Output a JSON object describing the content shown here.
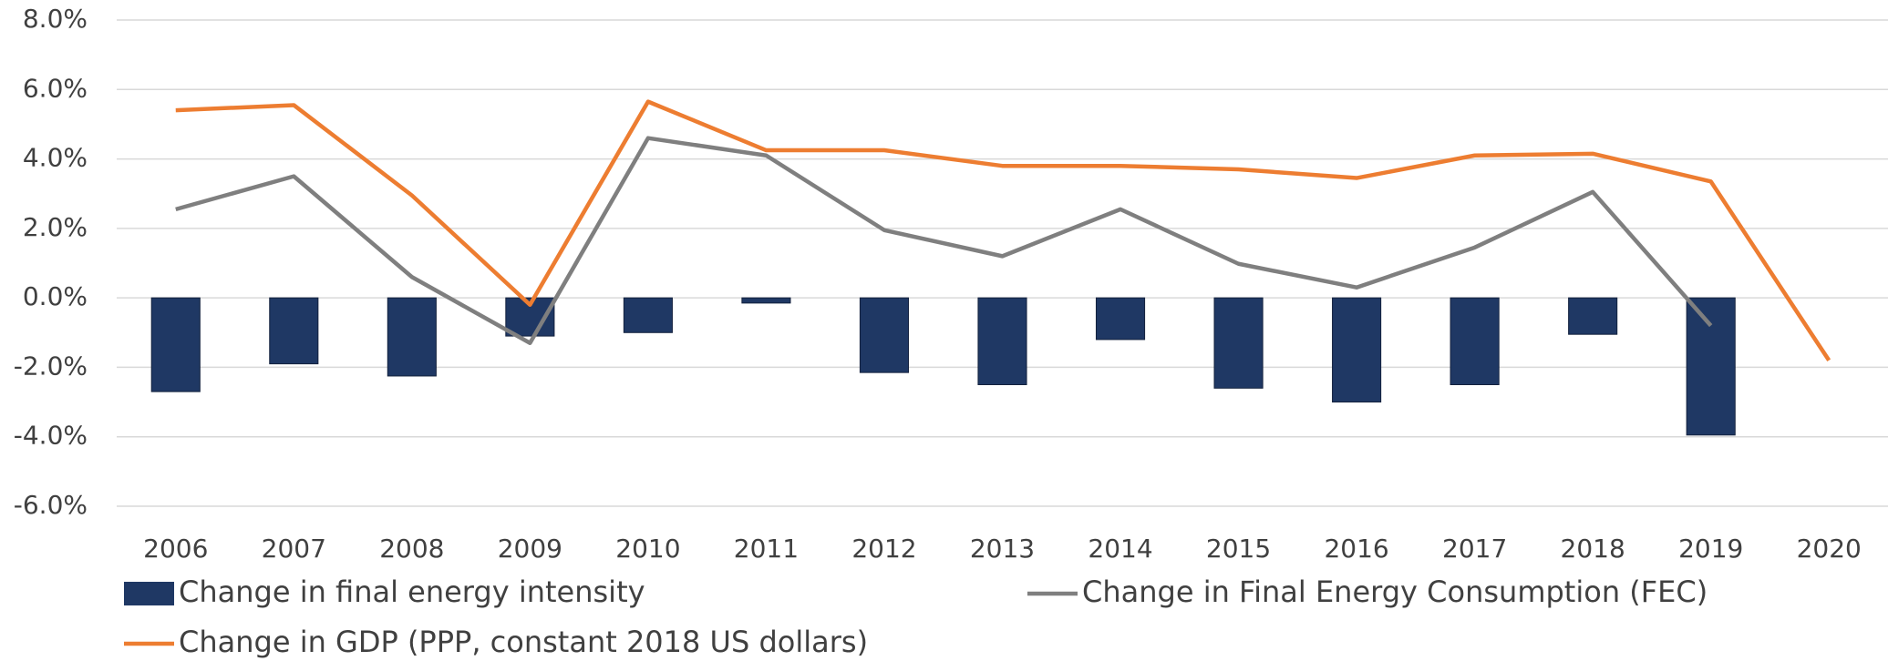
{
  "chart_data": {
    "type": "bar-line",
    "categories": [
      "2006",
      "2007",
      "2008",
      "2009",
      "2010",
      "2011",
      "2012",
      "2013",
      "2014",
      "2015",
      "2016",
      "2017",
      "2018",
      "2019",
      "2020"
    ],
    "series": [
      {
        "name": "Change in final energy intensity",
        "type": "bar",
        "color": "#1f3864",
        "values": [
          -2.7,
          -1.9,
          -2.25,
          -1.1,
          -1.0,
          -0.15,
          -2.15,
          -2.5,
          -1.2,
          -2.6,
          -3.0,
          -2.5,
          -1.05,
          -3.95,
          null
        ]
      },
      {
        "name": "Change in Final Energy Consumption (FEC)",
        "type": "line",
        "color": "#7f7f7f",
        "values": [
          2.55,
          3.5,
          0.6,
          -1.3,
          4.6,
          4.1,
          1.95,
          1.2,
          2.55,
          0.98,
          0.3,
          1.45,
          3.05,
          -0.8,
          null
        ]
      },
      {
        "name": "Change in GDP (PPP, constant 2018 US dollars)",
        "type": "line",
        "color": "#ed7d31",
        "values": [
          5.4,
          5.55,
          2.95,
          -0.2,
          5.65,
          4.25,
          4.25,
          3.8,
          3.8,
          3.7,
          3.45,
          4.1,
          4.15,
          3.35,
          -1.8
        ]
      }
    ],
    "ylim": [
      -6,
      8
    ],
    "yticks": [
      {
        "value": -6,
        "label": "-6.0%"
      },
      {
        "value": -4,
        "label": "-4.0%"
      },
      {
        "value": -2,
        "label": "-2.0%"
      },
      {
        "value": 0,
        "label": "0.0%"
      },
      {
        "value": 2,
        "label": "2.0%"
      },
      {
        "value": 4,
        "label": "4.0%"
      },
      {
        "value": 6,
        "label": "6.0%"
      },
      {
        "value": 8,
        "label": "8.0%"
      }
    ],
    "grid": true,
    "legend": "bottom"
  }
}
